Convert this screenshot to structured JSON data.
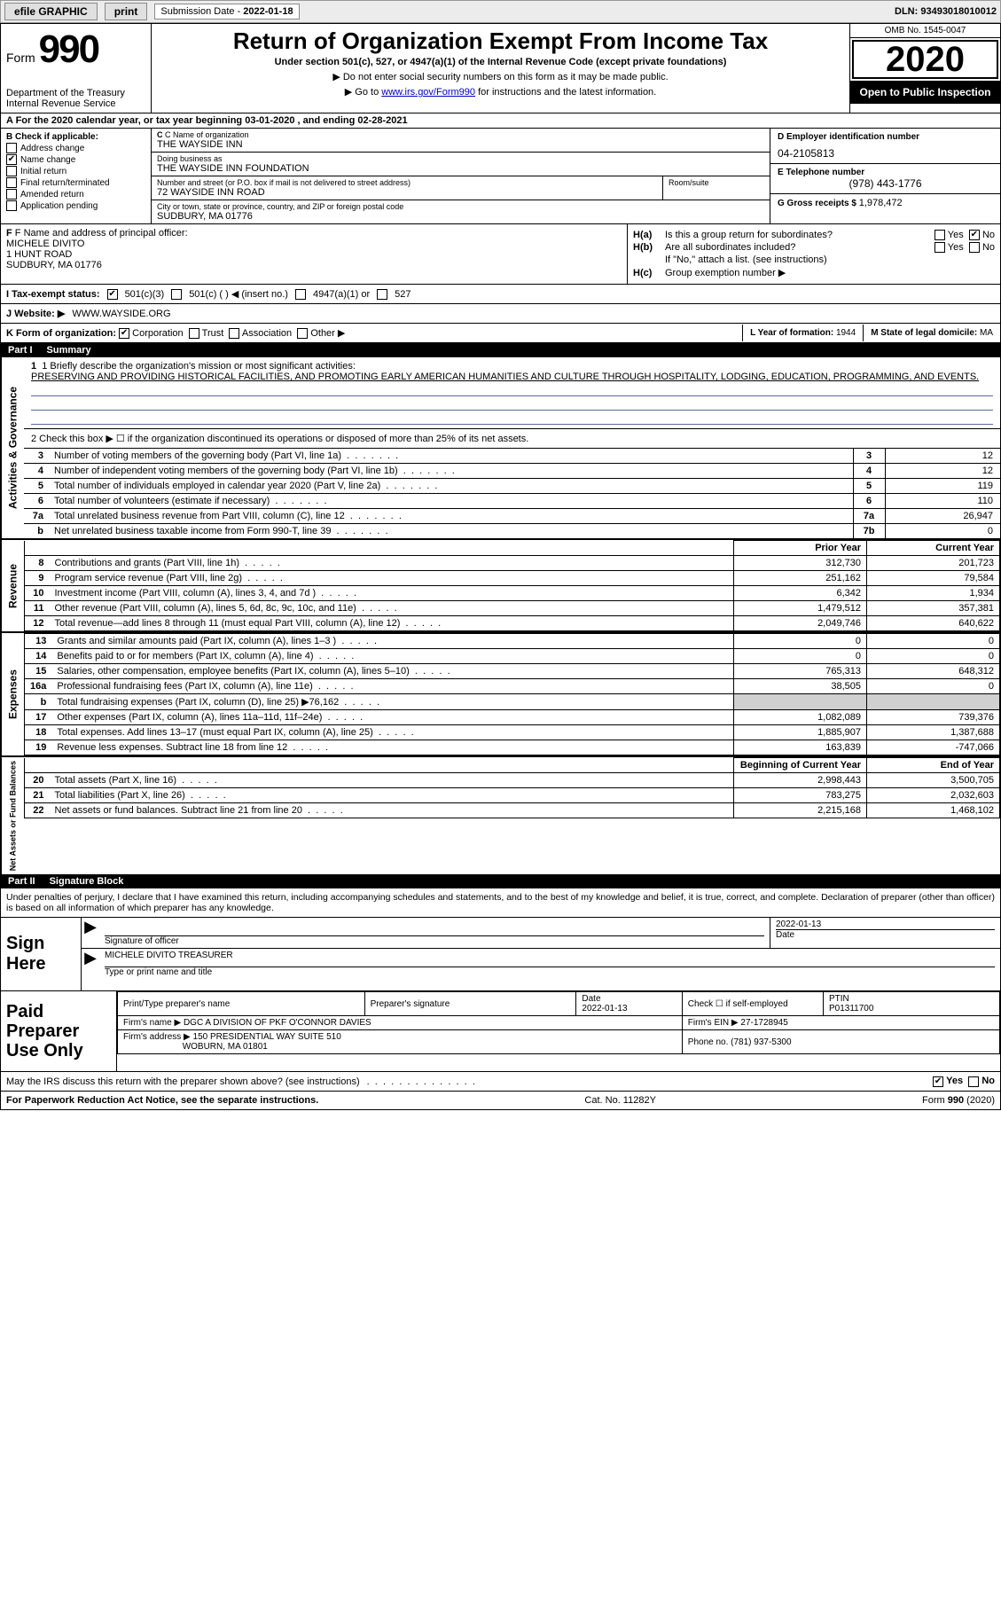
{
  "topbar": {
    "efile": "efile GRAPHIC",
    "print": "print",
    "sub_label": "Submission Date - ",
    "sub_date": "2022-01-18",
    "dln_label": "DLN: ",
    "dln": "93493018010012"
  },
  "header": {
    "form_word": "Form",
    "form_num": "990",
    "dept": "Department of the Treasury\nInternal Revenue Service",
    "title": "Return of Organization Exempt From Income Tax",
    "subtitle": "Under section 501(c), 527, or 4947(a)(1) of the Internal Revenue Code (except private foundations)",
    "instr1": "▶ Do not enter social security numbers on this form as it may be made public.",
    "instr2_a": "▶ Go to ",
    "instr2_link": "www.irs.gov/Form990",
    "instr2_b": " for instructions and the latest information.",
    "omb": "OMB No. 1545-0047",
    "year": "2020",
    "inspect": "Open to Public Inspection"
  },
  "period": {
    "text_a": "A For the 2020 calendar year, or tax year beginning ",
    "begin": "03-01-2020",
    "text_b": " , and ending ",
    "end": "02-28-2021"
  },
  "boxB": {
    "label": "B Check if applicable:",
    "opts": [
      {
        "label": "Address change",
        "checked": false
      },
      {
        "label": "Name change",
        "checked": true
      },
      {
        "label": "Initial return",
        "checked": false
      },
      {
        "label": "Final return/terminated",
        "checked": false
      },
      {
        "label": "Amended return",
        "checked": false
      },
      {
        "label": "Application pending",
        "checked": false
      }
    ]
  },
  "boxC": {
    "name_lab": "C Name of organization",
    "name": "THE WAYSIDE INN",
    "dba_lab": "Doing business as",
    "dba": "THE WAYSIDE INN FOUNDATION",
    "addr_lab": "Number and street (or P.O. box if mail is not delivered to street address)",
    "room_lab": "Room/suite",
    "addr": "72 WAYSIDE INN ROAD",
    "city_lab": "City or town, state or province, country, and ZIP or foreign postal code",
    "city": "SUDBURY, MA  01776"
  },
  "boxD": {
    "label": "D Employer identification number",
    "ein": "04-2105813"
  },
  "boxE": {
    "label": "E Telephone number",
    "phone": "(978) 443-1776"
  },
  "boxG": {
    "label": "G Gross receipts $ ",
    "val": "1,978,472"
  },
  "boxF": {
    "label": "F Name and address of principal officer:",
    "name": "MICHELE DIVITO",
    "addr1": "1 HUNT ROAD",
    "addr2": "SUDBURY, MA  01776"
  },
  "boxH": {
    "a_lab": "H(a)",
    "a_q": "Is this a group return for subordinates?",
    "a_yes": "Yes",
    "a_no": "No",
    "b_lab": "H(b)",
    "b_q": "Are all subordinates included?",
    "b_yes": "Yes",
    "b_no": "No",
    "b_note": "If \"No,\" attach a list. (see instructions)",
    "c_lab": "H(c)",
    "c_q": "Group exemption number ▶"
  },
  "boxI": {
    "label": "I    Tax-exempt status:",
    "o1": "501(c)(3)",
    "o2": "501(c) (  ) ◀ (insert no.)",
    "o3": "4947(a)(1) or",
    "o4": "527"
  },
  "boxJ": {
    "label": "J    Website: ▶",
    "url": "WWW.WAYSIDE.ORG"
  },
  "boxK": {
    "label": "K Form of organization:",
    "o1": "Corporation",
    "o2": "Trust",
    "o3": "Association",
    "o4": "Other ▶",
    "L_label": "L Year of formation: ",
    "L_val": "1944",
    "M_label": "M State of legal domicile: ",
    "M_val": "MA"
  },
  "part1": {
    "num": "Part I",
    "title": "Summary"
  },
  "mission": {
    "line1": "1  Briefly describe the organization's mission or most significant activities:",
    "text": "PRESERVING AND PROVIDING HISTORICAL FACILITIES, AND PROMOTING EARLY AMERICAN HUMANITIES AND CULTURE THROUGH HOSPITALITY, LODGING, EDUCATION, PROGRAMMING, AND EVENTS."
  },
  "gov_side": "Activities & Governance",
  "gov_line2": "2   Check this box ▶ ☐  if the organization discontinued its operations or disposed of more than 25% of its net assets.",
  "gov_rows": [
    {
      "n": "3",
      "desc": "Number of voting members of the governing body (Part VI, line 1a)",
      "box": "3",
      "val": "12"
    },
    {
      "n": "4",
      "desc": "Number of independent voting members of the governing body (Part VI, line 1b)",
      "box": "4",
      "val": "12"
    },
    {
      "n": "5",
      "desc": "Total number of individuals employed in calendar year 2020 (Part V, line 2a)",
      "box": "5",
      "val": "119"
    },
    {
      "n": "6",
      "desc": "Total number of volunteers (estimate if necessary)",
      "box": "6",
      "val": "110"
    },
    {
      "n": "7a",
      "desc": "Total unrelated business revenue from Part VIII, column (C), line 12",
      "box": "7a",
      "val": "26,947"
    },
    {
      "n": "b",
      "desc": "Net unrelated business taxable income from Form 990-T, line 39",
      "box": "7b",
      "val": "0"
    }
  ],
  "rev_side": "Revenue",
  "py_hdr": "Prior Year",
  "cy_hdr": "Current Year",
  "rev_rows": [
    {
      "n": "8",
      "desc": "Contributions and grants (Part VIII, line 1h)",
      "py": "312,730",
      "cy": "201,723"
    },
    {
      "n": "9",
      "desc": "Program service revenue (Part VIII, line 2g)",
      "py": "251,162",
      "cy": "79,584"
    },
    {
      "n": "10",
      "desc": "Investment income (Part VIII, column (A), lines 3, 4, and 7d )",
      "py": "6,342",
      "cy": "1,934"
    },
    {
      "n": "11",
      "desc": "Other revenue (Part VIII, column (A), lines 5, 6d, 8c, 9c, 10c, and 11e)",
      "py": "1,479,512",
      "cy": "357,381"
    },
    {
      "n": "12",
      "desc": "Total revenue—add lines 8 through 11 (must equal Part VIII, column (A), line 12)",
      "py": "2,049,746",
      "cy": "640,622"
    }
  ],
  "exp_side": "Expenses",
  "exp_rows": [
    {
      "n": "13",
      "desc": "Grants and similar amounts paid (Part IX, column (A), lines 1–3 )",
      "py": "0",
      "cy": "0"
    },
    {
      "n": "14",
      "desc": "Benefits paid to or for members (Part IX, column (A), line 4)",
      "py": "0",
      "cy": "0"
    },
    {
      "n": "15",
      "desc": "Salaries, other compensation, employee benefits (Part IX, column (A), lines 5–10)",
      "py": "765,313",
      "cy": "648,312"
    },
    {
      "n": "16a",
      "desc": "Professional fundraising fees (Part IX, column (A), line 11e)",
      "py": "38,505",
      "cy": "0"
    },
    {
      "n": "b",
      "desc": "Total fundraising expenses (Part IX, column (D), line 25) ▶76,162",
      "py": "",
      "cy": "",
      "shade": true
    },
    {
      "n": "17",
      "desc": "Other expenses (Part IX, column (A), lines 11a–11d, 11f–24e)",
      "py": "1,082,089",
      "cy": "739,376"
    },
    {
      "n": "18",
      "desc": "Total expenses. Add lines 13–17 (must equal Part IX, column (A), line 25)",
      "py": "1,885,907",
      "cy": "1,387,688"
    },
    {
      "n": "19",
      "desc": "Revenue less expenses. Subtract line 18 from line 12",
      "py": "163,839",
      "cy": "-747,066"
    }
  ],
  "na_side": "Net Assets or Fund Balances",
  "na_py": "Beginning of Current Year",
  "na_cy": "End of Year",
  "na_rows": [
    {
      "n": "20",
      "desc": "Total assets (Part X, line 16)",
      "py": "2,998,443",
      "cy": "3,500,705"
    },
    {
      "n": "21",
      "desc": "Total liabilities (Part X, line 26)",
      "py": "783,275",
      "cy": "2,032,603"
    },
    {
      "n": "22",
      "desc": "Net assets or fund balances. Subtract line 21 from line 20",
      "py": "2,215,168",
      "cy": "1,468,102"
    }
  ],
  "part2": {
    "num": "Part II",
    "title": "Signature Block"
  },
  "decl": "Under penalties of perjury, I declare that I have examined this return, including accompanying schedules and statements, and to the best of my knowledge and belief, it is true, correct, and complete. Declaration of preparer (other than officer) is based on all information of which preparer has any knowledge.",
  "sign": {
    "label": "Sign Here",
    "sig_lab": "Signature of officer",
    "date_lab": "Date",
    "date": "2022-01-13",
    "name": "MICHELE DIVITO  TREASURER",
    "name_lab": "Type or print name and title"
  },
  "prep": {
    "label": "Paid Preparer Use Only",
    "h1": "Print/Type preparer's name",
    "h2": "Preparer's signature",
    "h3": "Date",
    "h3v": "2022-01-13",
    "h4": "Check ☐ if self-employed",
    "h5": "PTIN",
    "h5v": "P01311700",
    "firm_lab": "Firm's name    ▶",
    "firm": "DGC A DIVISION OF PKF O'CONNOR DAVIES",
    "ein_lab": "Firm's EIN ▶",
    "ein": "27-1728945",
    "addr_lab": "Firm's address ▶",
    "addr1": "150 PRESIDENTIAL WAY SUITE 510",
    "addr2": "WOBURN, MA  01801",
    "phone_lab": "Phone no. ",
    "phone": "(781) 937-5300"
  },
  "discuss": {
    "q": "May the IRS discuss this return with the preparer shown above? (see instructions)",
    "yes": "Yes",
    "no": "No"
  },
  "footer": {
    "l": "For Paperwork Reduction Act Notice, see the separate instructions.",
    "m": "Cat. No. 11282Y",
    "r": "Form 990 (2020)"
  }
}
